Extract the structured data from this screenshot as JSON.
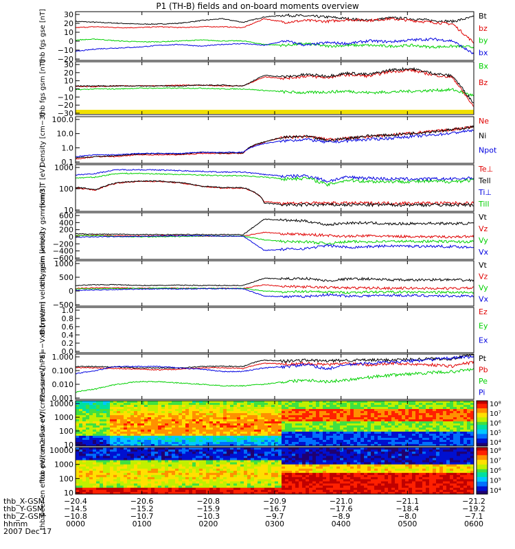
{
  "title": "P1 (TH-B) fields and on-board moments overview",
  "colors": {
    "black": "#000000",
    "red": "#e00000",
    "green": "#00d000",
    "blue": "#0000e0",
    "yellow": "#f0e000"
  },
  "chart_data": [
    {
      "type": "line",
      "panel": "fgs-gse",
      "ylabel": "thb fgs gse [nT]",
      "yticks": [
        "30",
        "20",
        "10",
        "0",
        "−10",
        "−20"
      ],
      "ylim": [
        -25,
        30
      ],
      "legend": [
        "Bt",
        "bz",
        "by",
        "bx"
      ],
      "series": [
        {
          "name": "Bt",
          "color": "black",
          "values": [
            19,
            18,
            17,
            16,
            16,
            17,
            20,
            22,
            18,
            24,
            26,
            25,
            24,
            22,
            20,
            23,
            22,
            20,
            19,
            24
          ]
        },
        {
          "name": "bz",
          "color": "red",
          "values": [
            12,
            13,
            12,
            12,
            13,
            12,
            13,
            13,
            12,
            22,
            18,
            20,
            19,
            21,
            20,
            22,
            20,
            18,
            16,
            -5
          ]
        },
        {
          "name": "by",
          "color": "green",
          "values": [
            -2,
            -1,
            -3,
            -4,
            -4,
            -3,
            -2,
            -3,
            -3,
            -7,
            -8,
            -6,
            -9,
            -8,
            -8,
            -9,
            -8,
            -10,
            -9,
            -10
          ]
        },
        {
          "name": "bx",
          "color": "blue",
          "values": [
            -15,
            -12,
            -11,
            -10,
            -8,
            -7,
            -9,
            -7,
            -6,
            -8,
            -3,
            -8,
            -5,
            -6,
            -3,
            -4,
            -2,
            -1,
            -3,
            -18
          ]
        }
      ]
    },
    {
      "type": "line",
      "panel": "fgs-gsm",
      "ylabel": "thb fgs gsm [nT]",
      "yticks": [
        "30",
        "20",
        "10",
        "0",
        "−10",
        "−20",
        "−30"
      ],
      "ylim": [
        -35,
        35
      ],
      "legend": [
        "Bx",
        "Bz"
      ],
      "series": [
        {
          "name": "Bx",
          "color": "green",
          "values": [
            -2,
            -1,
            -1,
            0,
            0,
            0,
            0,
            -1,
            -1,
            -3,
            -5,
            -6,
            -5,
            -4,
            -6,
            -5,
            -4,
            -3,
            -2,
            -10
          ]
        },
        {
          "name": "Bz",
          "color": "red",
          "values": [
            2,
            2,
            3,
            3,
            3,
            4,
            4,
            3,
            3,
            15,
            13,
            16,
            14,
            18,
            16,
            22,
            24,
            18,
            14,
            -25
          ]
        },
        {
          "name": "",
          "color": "black",
          "values": [
            3,
            3,
            3,
            3,
            3,
            3,
            4,
            4,
            3,
            17,
            15,
            18,
            16,
            20,
            18,
            24,
            26,
            20,
            16,
            -20
          ]
        }
      ]
    },
    {
      "type": "line",
      "panel": "density",
      "ylabel": "Density [cm−3]",
      "yscale": "log",
      "yticks": [
        "100.0",
        "10.0",
        "1.0",
        "0.1"
      ],
      "ylim": [
        0.1,
        200
      ],
      "legend": [
        "Ne",
        "Ni",
        "Npot"
      ],
      "series": [
        {
          "name": "Ne",
          "color": "red",
          "values": [
            0.2,
            0.3,
            0.3,
            0.4,
            0.4,
            0.4,
            0.5,
            0.5,
            0.5,
            3,
            7,
            8,
            5,
            6,
            8,
            10,
            14,
            18,
            25,
            40
          ]
        },
        {
          "name": "Ni",
          "color": "black",
          "values": [
            0.25,
            0.3,
            0.35,
            0.45,
            0.5,
            0.45,
            0.6,
            0.55,
            0.55,
            3.2,
            7,
            8,
            4,
            6,
            9,
            10,
            13,
            18,
            24,
            38
          ]
        },
        {
          "name": "Npot",
          "color": "blue",
          "values": [
            0.3,
            0.4,
            0.4,
            0.5,
            0.5,
            0.5,
            0.6,
            0.6,
            0.6,
            2.5,
            4,
            5,
            3,
            4,
            5,
            6,
            8,
            10,
            14,
            22
          ]
        }
      ]
    },
    {
      "type": "line",
      "panel": "temperature",
      "ylabel": "mom3 T [eV]",
      "yscale": "log",
      "yticks": [
        "1000",
        "100",
        "10"
      ],
      "ylim": [
        8,
        5000
      ],
      "legend": [
        "Te⊥",
        "Tell",
        "Ti⊥",
        "Till"
      ],
      "series": [
        {
          "name": "Te⊥",
          "color": "red",
          "values": [
            200,
            150,
            400,
            500,
            500,
            400,
            250,
            200,
            200,
            30,
            25,
            25,
            25,
            25,
            25,
            25,
            25,
            25,
            25,
            25
          ]
        },
        {
          "name": "Tell",
          "color": "black",
          "values": [
            220,
            160,
            420,
            520,
            520,
            420,
            260,
            210,
            210,
            25,
            20,
            20,
            20,
            20,
            20,
            20,
            20,
            20,
            20,
            20
          ]
        },
        {
          "name": "Ti⊥",
          "color": "blue",
          "values": [
            1200,
            1500,
            2500,
            2500,
            2400,
            2200,
            2000,
            1800,
            1800,
            1300,
            1000,
            1100,
            500,
            900,
            800,
            700,
            700,
            700,
            700,
            800
          ]
        },
        {
          "name": "Till",
          "color": "green",
          "values": [
            800,
            900,
            1500,
            1500,
            1400,
            1300,
            1200,
            1100,
            1100,
            900,
            700,
            800,
            300,
            600,
            500,
            500,
            500,
            500,
            500,
            600
          ]
        }
      ]
    },
    {
      "type": "line",
      "panel": "peim-velocity",
      "ylabel": "thb peim velocity gsm [km/s]",
      "yticks": [
        "600",
        "400",
        "200",
        "0",
        "−200",
        "−400",
        "−600"
      ],
      "ylim": [
        -620,
        620
      ],
      "legend": [
        "Vt",
        "Vz",
        "Vy",
        "Vx"
      ],
      "series": [
        {
          "name": "Vt",
          "color": "black",
          "values": [
            60,
            50,
            50,
            40,
            40,
            40,
            40,
            40,
            40,
            450,
            420,
            400,
            300,
            350,
            350,
            320,
            330,
            340,
            330,
            340
          ]
        },
        {
          "name": "Vz",
          "color": "red",
          "values": [
            10,
            20,
            10,
            0,
            10,
            10,
            0,
            0,
            0,
            100,
            60,
            40,
            20,
            -10,
            10,
            -10,
            -10,
            -20,
            -20,
            -10
          ]
        },
        {
          "name": "Vy",
          "color": "green",
          "values": [
            20,
            10,
            -10,
            -20,
            -20,
            -10,
            0,
            0,
            0,
            -100,
            -150,
            -150,
            -200,
            -150,
            -150,
            -140,
            -140,
            -140,
            -150,
            -150
          ]
        },
        {
          "name": "Vx",
          "color": "blue",
          "values": [
            -30,
            -20,
            -10,
            -10,
            0,
            10,
            10,
            0,
            0,
            -380,
            -350,
            -330,
            -250,
            -300,
            -280,
            -260,
            -270,
            -270,
            -280,
            -300
          ]
        }
      ]
    },
    {
      "type": "line",
      "panel": "peem-velocity",
      "ylabel": "thb peem velocity gsm [km/s]",
      "yticks": [
        "1000",
        "500",
        "0",
        "−500"
      ],
      "ylim": [
        -700,
        1100
      ],
      "legend": [
        "Vt",
        "Vz",
        "Vy",
        "Vx"
      ],
      "series": [
        {
          "name": "Vt",
          "color": "black",
          "values": [
            120,
            150,
            150,
            120,
            120,
            130,
            120,
            120,
            120,
            400,
            380,
            400,
            300,
            380,
            380,
            340,
            330,
            350,
            340,
            320
          ]
        },
        {
          "name": "Vz",
          "color": "red",
          "values": [
            0,
            30,
            20,
            10,
            10,
            10,
            0,
            10,
            0,
            150,
            80,
            60,
            40,
            20,
            20,
            10,
            10,
            0,
            0,
            20
          ]
        },
        {
          "name": "Vy",
          "color": "green",
          "values": [
            -20,
            -10,
            0,
            0,
            10,
            0,
            10,
            0,
            0,
            -100,
            -140,
            -120,
            -150,
            -160,
            -140,
            -140,
            -150,
            -150,
            -160,
            -150
          ]
        },
        {
          "name": "Vx",
          "color": "blue",
          "values": [
            -80,
            -60,
            -40,
            -30,
            -20,
            -20,
            -10,
            -10,
            -10,
            -300,
            -330,
            -320,
            -250,
            -300,
            -290,
            -270,
            -280,
            -290,
            -300,
            -300
          ]
        }
      ]
    },
    {
      "type": "line",
      "panel": "efield",
      "ylabel": "E=−VxB [mV/m]",
      "yticks": [
        "1.0",
        "0.8",
        "0.6",
        "0.4",
        "0.2",
        "0.0"
      ],
      "ylim": [
        0,
        1
      ],
      "legend": [
        "Ez",
        "Ey",
        "Ex"
      ],
      "series": []
    },
    {
      "type": "line",
      "panel": "pressure",
      "ylabel": "Pressure [nPa]",
      "yscale": "log",
      "yticks": [
        "1.000",
        "0.100",
        "0.010",
        "0.001"
      ],
      "ylim": [
        0.001,
        1
      ],
      "legend": [
        "Pt",
        "Pb",
        "Pe",
        "Pi"
      ],
      "series": [
        {
          "name": "Pt",
          "color": "black",
          "values": [
            0.15,
            0.15,
            0.14,
            0.12,
            0.12,
            0.12,
            0.15,
            0.16,
            0.15,
            0.4,
            0.35,
            0.4,
            0.35,
            0.4,
            0.4,
            0.42,
            0.45,
            0.5,
            0.5,
            0.9
          ]
        },
        {
          "name": "Pb",
          "color": "red",
          "values": [
            0.13,
            0.12,
            0.11,
            0.1,
            0.09,
            0.1,
            0.12,
            0.13,
            0.11,
            0.25,
            0.22,
            0.25,
            0.2,
            0.25,
            0.2,
            0.25,
            0.22,
            0.2,
            0.16,
            0.3
          ]
        },
        {
          "name": "Pe",
          "color": "green",
          "values": [
            0.003,
            0.005,
            0.01,
            0.015,
            0.015,
            0.012,
            0.01,
            0.008,
            0.008,
            0.01,
            0.015,
            0.02,
            0.015,
            0.02,
            0.03,
            0.04,
            0.05,
            0.06,
            0.07,
            0.1
          ]
        },
        {
          "name": "Pi",
          "color": "blue",
          "values": [
            0.05,
            0.08,
            0.15,
            0.15,
            0.15,
            0.12,
            0.1,
            0.07,
            0.07,
            0.12,
            0.15,
            0.2,
            0.1,
            0.2,
            0.25,
            0.3,
            0.35,
            0.45,
            0.55,
            0.7
          ]
        }
      ]
    },
    {
      "type": "heatmap",
      "panel": "peir-eflux",
      "ylabel": "thb peir en eflux eV/(cm2-s-sr-eV)",
      "yscale": "log",
      "yticks": [
        "10000",
        "1000",
        "100",
        "10"
      ],
      "ylim": [
        7,
        25000
      ],
      "colorbar_ticks": [
        "10⁸",
        "10⁷",
        "10⁶",
        "10⁵",
        "10⁴"
      ]
    },
    {
      "type": "heatmap",
      "panel": "peer-eflux",
      "ylabel": "thb peer en eflux eV/(cm2-s-sr-eV)",
      "yscale": "log",
      "yticks": [
        "10000",
        "1000",
        "100",
        "10"
      ],
      "ylim": [
        7,
        25000
      ],
      "colorbar_ticks": [
        "10⁸",
        "10⁷",
        "10⁶",
        "10⁵",
        "10⁴"
      ]
    }
  ],
  "xaxis": {
    "rows": [
      {
        "label": "thb_X-GSM",
        "values": [
          "−20.4",
          "−20.6",
          "−20.8",
          "−20.9",
          "−21.0",
          "−21.1",
          "−21.2"
        ]
      },
      {
        "label": "thb_Y-GSM",
        "values": [
          "−14.5",
          "−15.2",
          "−15.9",
          "−16.7",
          "−17.6",
          "−18.4",
          "−19.2"
        ]
      },
      {
        "label": "thb_Z-GSM",
        "values": [
          "−10.8",
          "−10.7",
          "−10.3",
          "−9.7",
          "−8.9",
          "−8.0",
          "−7.1"
        ]
      },
      {
        "label": "hhmm",
        "values": [
          "0000",
          "0100",
          "0200",
          "0300",
          "0400",
          "0500",
          "0600"
        ]
      }
    ],
    "date": "2007 Dec 17"
  }
}
